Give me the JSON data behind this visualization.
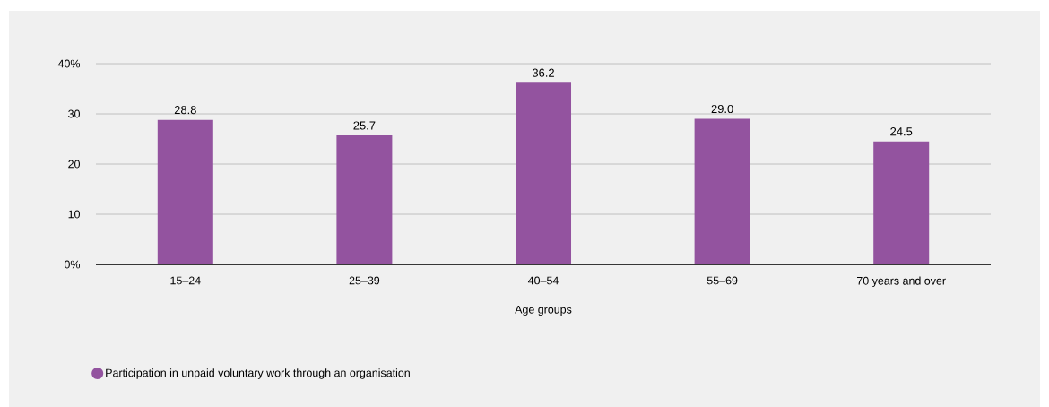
{
  "chart_data": {
    "type": "bar",
    "xlabel": "Age groups",
    "categories": [
      "15–24",
      "25–39",
      "40–54",
      "55–69",
      "70 years and over"
    ],
    "series": [
      {
        "name": "Participation in unpaid voluntary work through an organisation",
        "color": "#93539f",
        "values": [
          28.8,
          25.7,
          36.2,
          29.0,
          24.5
        ],
        "value_labels": [
          "28.8",
          "25.7",
          "36.2",
          "29.0",
          "24.5"
        ]
      }
    ],
    "ylim": [
      0,
      40
    ],
    "yticks": [
      {
        "value": 0,
        "label": "0%"
      },
      10,
      20,
      30,
      {
        "value": 40,
        "label": "40%"
      }
    ],
    "grid": "y",
    "legend": "bottom left"
  }
}
